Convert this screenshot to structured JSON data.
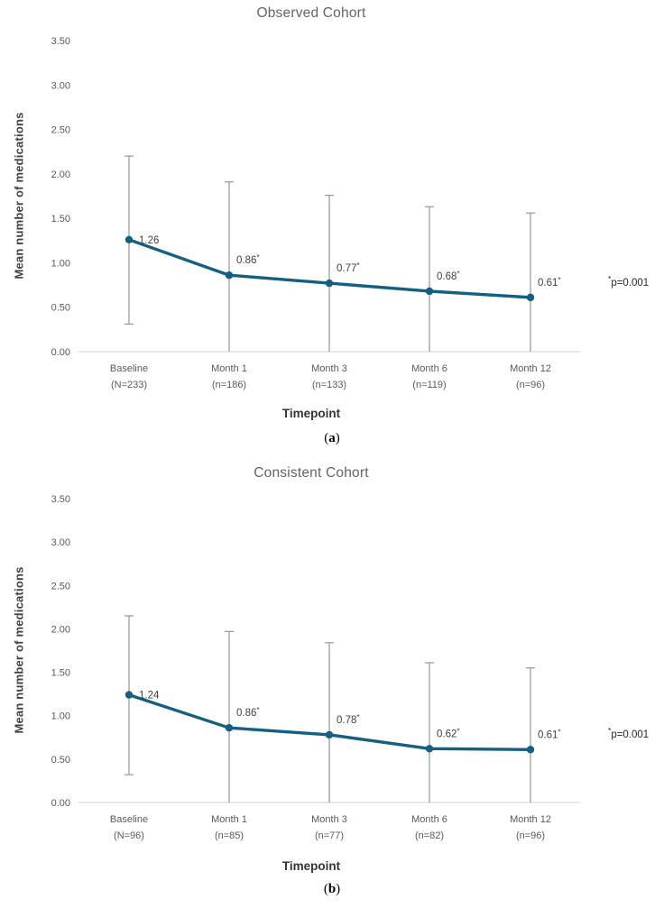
{
  "style": {
    "line_color": "#156082",
    "error_bar_color": "#969696",
    "axis_line_color": "#d9d9d9",
    "tick_label_color": "#595959",
    "data_label_color": "#404040",
    "title_color": "#646464"
  },
  "chart_data": [
    {
      "type": "line",
      "title": "Observed Cohort",
      "caption": "(a)",
      "xlabel": "Timepoint",
      "ylabel": "Mean number of medications",
      "annotation": "*p=0.001",
      "categories": [
        "Baseline",
        "Month 1",
        "Month 3",
        "Month 6",
        "Month 12"
      ],
      "category_sublabels": [
        "(N=233)",
        "(n=186)",
        "(n=133)",
        "(n=119)",
        "(n=96)"
      ],
      "values": [
        1.26,
        0.86,
        0.77,
        0.68,
        0.61
      ],
      "point_labels": [
        "1.26",
        "0.86*",
        "0.77*",
        "0.68*",
        "0.61*"
      ],
      "error_upper": [
        2.2,
        1.91,
        1.76,
        1.63,
        1.56
      ],
      "error_lower": [
        0.31,
        null,
        null,
        null,
        null
      ],
      "ylim": [
        0,
        3.5
      ],
      "ytick_step": 0.5,
      "grid": false,
      "legend": null
    },
    {
      "type": "line",
      "title": "Consistent Cohort",
      "caption": "(b)",
      "xlabel": "Timepoint",
      "ylabel": "Mean number of medications",
      "annotation": "*p=0.001",
      "categories": [
        "Baseline",
        "Month 1",
        "Month 3",
        "Month 6",
        "Month 12"
      ],
      "category_sublabels": [
        "(N=96)",
        "(n=85)",
        "(n=77)",
        "(n=82)",
        "(n=96)"
      ],
      "values": [
        1.24,
        0.86,
        0.78,
        0.62,
        0.61
      ],
      "point_labels": [
        "1.24",
        "0.86*",
        "0.78*",
        "0.62*",
        "0.61*"
      ],
      "error_upper": [
        2.15,
        1.97,
        1.84,
        1.61,
        1.55
      ],
      "error_lower": [
        0.32,
        null,
        null,
        null,
        null
      ],
      "ylim": [
        0,
        3.5
      ],
      "ytick_step": 0.5,
      "grid": false,
      "legend": null
    }
  ]
}
